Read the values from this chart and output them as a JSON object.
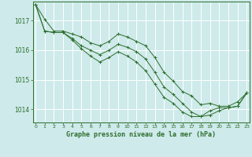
{
  "bg_color": "#ceeaea",
  "grid_color": "#ffffff",
  "line_color": "#2d6e2d",
  "marker_color": "#2d6e2d",
  "xlabel": "Graphe pression niveau de la mer (hPa)",
  "xlabel_color": "#2d6e2d",
  "ylabel_color": "#2d6e2d",
  "xticks": [
    0,
    1,
    2,
    3,
    4,
    5,
    6,
    7,
    8,
    9,
    10,
    11,
    12,
    13,
    14,
    15,
    16,
    17,
    18,
    19,
    20,
    21,
    22,
    23
  ],
  "yticks": [
    1014,
    1015,
    1016,
    1017
  ],
  "xlim": [
    -0.3,
    23.3
  ],
  "ylim": [
    1013.55,
    1017.65
  ],
  "series": [
    [
      1017.55,
      1017.05,
      1016.65,
      1016.65,
      1016.55,
      1016.45,
      1016.25,
      1016.15,
      1016.3,
      1016.55,
      1016.45,
      1016.3,
      1016.15,
      1015.75,
      1015.25,
      1014.95,
      1014.6,
      1014.45,
      1014.15,
      1014.2,
      1014.1,
      1014.1,
      1014.25,
      1014.55
    ],
    [
      1017.55,
      1016.65,
      1016.6,
      1016.6,
      1016.4,
      1016.15,
      1016.0,
      1015.85,
      1016.0,
      1016.2,
      1016.1,
      1015.95,
      1015.7,
      1015.25,
      1014.75,
      1014.5,
      1014.2,
      1013.9,
      1013.75,
      1013.8,
      1013.95,
      1014.05,
      1014.1,
      1014.55
    ],
    [
      1017.55,
      1016.65,
      1016.6,
      1016.6,
      1016.35,
      1016.05,
      1015.8,
      1015.6,
      1015.75,
      1015.95,
      1015.8,
      1015.6,
      1015.3,
      1014.85,
      1014.4,
      1014.2,
      1013.9,
      1013.75,
      1013.75,
      1013.95,
      1014.05,
      1014.05,
      1014.1,
      1014.55
    ]
  ]
}
